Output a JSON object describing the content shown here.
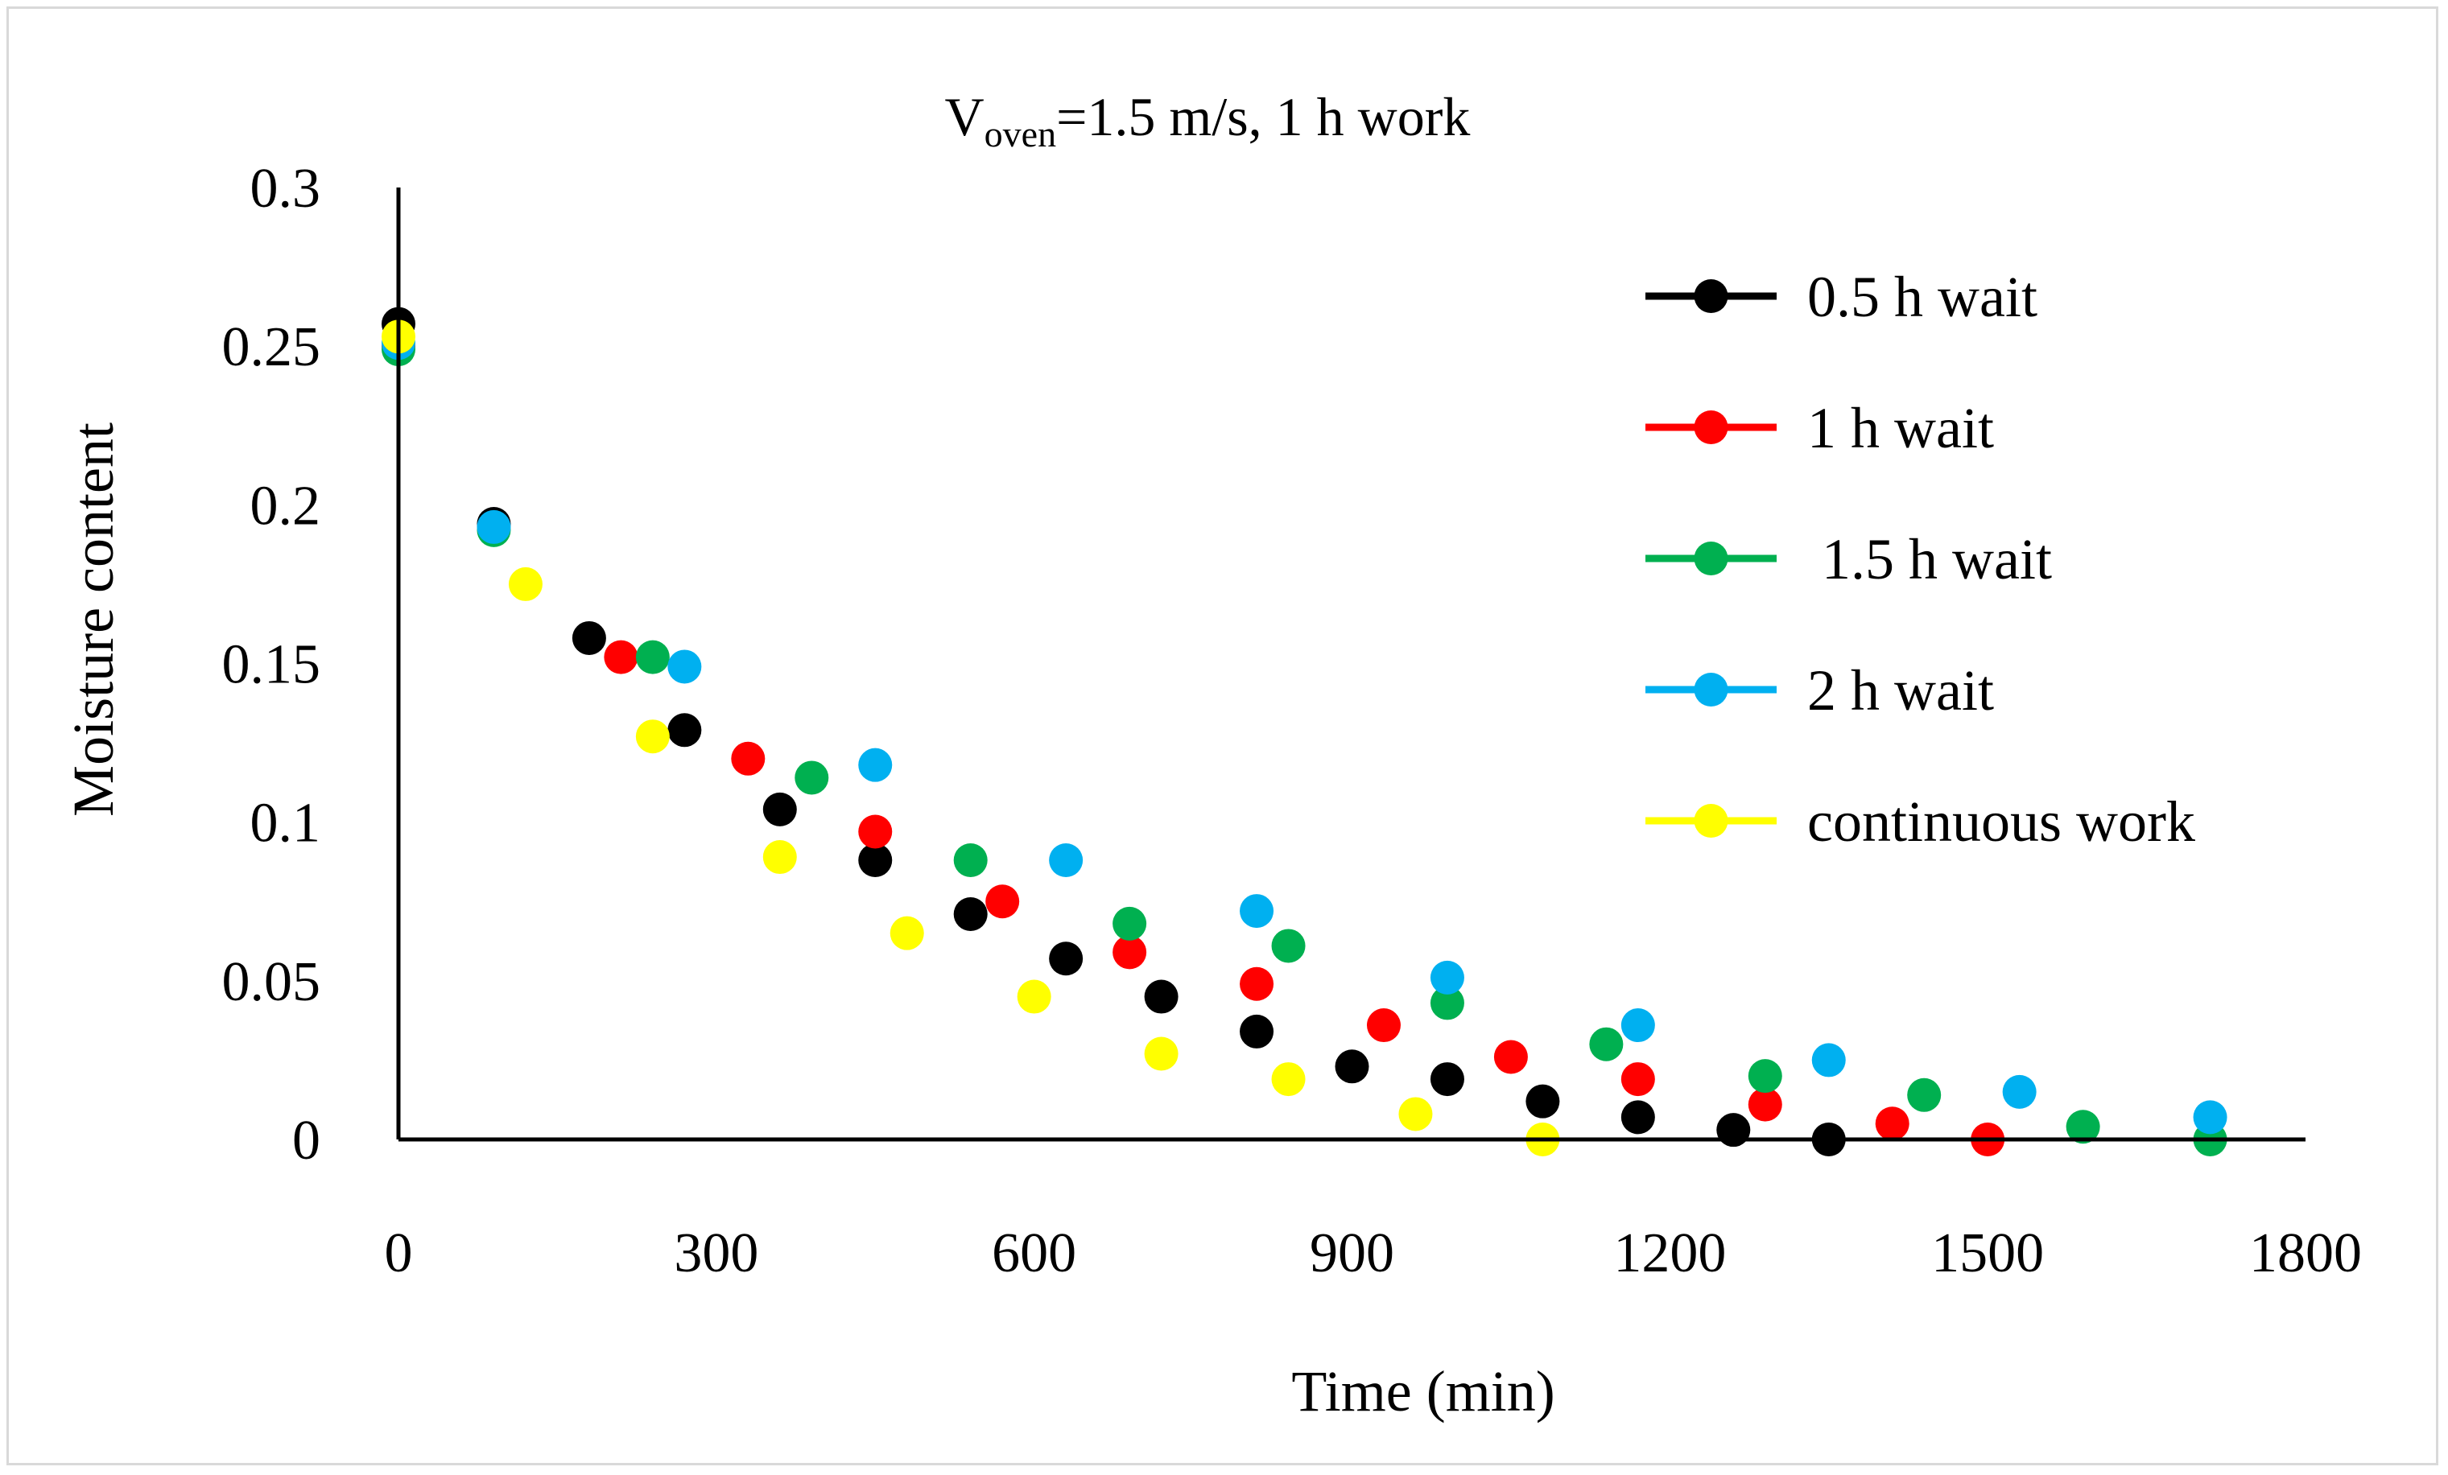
{
  "chart_data": {
    "type": "scatter",
    "title": {
      "main": "V",
      "subscript": "oven",
      "rest": "=1.5 m/s, 1 h work"
    },
    "xlabel": "Time (min)",
    "ylabel": "Moisture content",
    "xlim": [
      0,
      1800
    ],
    "ylim": [
      0,
      0.3
    ],
    "x_ticks": [
      0,
      300,
      600,
      900,
      1200,
      1500,
      1800
    ],
    "x_tick_labels": [
      "0",
      "300",
      "600",
      "900",
      "1200",
      "1500",
      "1800"
    ],
    "y_ticks": [
      0,
      0.05,
      0.1,
      0.15,
      0.2,
      0.25,
      0.3
    ],
    "y_tick_labels": [
      "0",
      "0.05",
      "0.1",
      "0.15",
      "0.2",
      "0.25",
      "0.3"
    ],
    "grid": false,
    "legend_position": "right",
    "series": [
      {
        "name": "0.5 h wait",
        "color": "#000000",
        "x": [
          0,
          90,
          180,
          270,
          360,
          450,
          540,
          630,
          720,
          810,
          900,
          990,
          1080,
          1170,
          1260,
          1350
        ],
        "y": [
          0.257,
          0.194,
          0.158,
          0.129,
          0.104,
          0.088,
          0.071,
          0.057,
          0.045,
          0.034,
          0.023,
          0.019,
          0.012,
          0.007,
          0.003,
          0.0
        ]
      },
      {
        "name": "1 h wait",
        "color": "#ff0000",
        "x": [
          0,
          210,
          330,
          450,
          570,
          690,
          810,
          930,
          1050,
          1170,
          1290,
          1410,
          1500
        ],
        "y": [
          0.25,
          0.152,
          0.12,
          0.097,
          0.075,
          0.059,
          0.049,
          0.036,
          0.026,
          0.019,
          0.011,
          0.005,
          0.0
        ]
      },
      {
        "name": " 1.5 h wait",
        "color": "#00b050",
        "x": [
          0,
          90,
          240,
          390,
          540,
          690,
          840,
          990,
          1140,
          1290,
          1440,
          1590,
          1710
        ],
        "y": [
          0.249,
          0.192,
          0.152,
          0.114,
          0.088,
          0.068,
          0.061,
          0.043,
          0.03,
          0.02,
          0.014,
          0.004,
          0.0
        ]
      },
      {
        "name": "2 h wait",
        "color": "#00b0f0",
        "x": [
          0,
          90,
          270,
          450,
          630,
          810,
          990,
          1170,
          1350,
          1530,
          1710
        ],
        "y": [
          0.251,
          0.193,
          0.149,
          0.118,
          0.088,
          0.072,
          0.051,
          0.036,
          0.025,
          0.015,
          0.007
        ]
      },
      {
        "name": "continuous work",
        "color": "#ffff00",
        "x": [
          0,
          120,
          240,
          360,
          480,
          600,
          720,
          840,
          960,
          1080
        ],
        "y": [
          0.253,
          0.175,
          0.127,
          0.089,
          0.065,
          0.045,
          0.027,
          0.019,
          0.008,
          0.0
        ]
      }
    ]
  }
}
